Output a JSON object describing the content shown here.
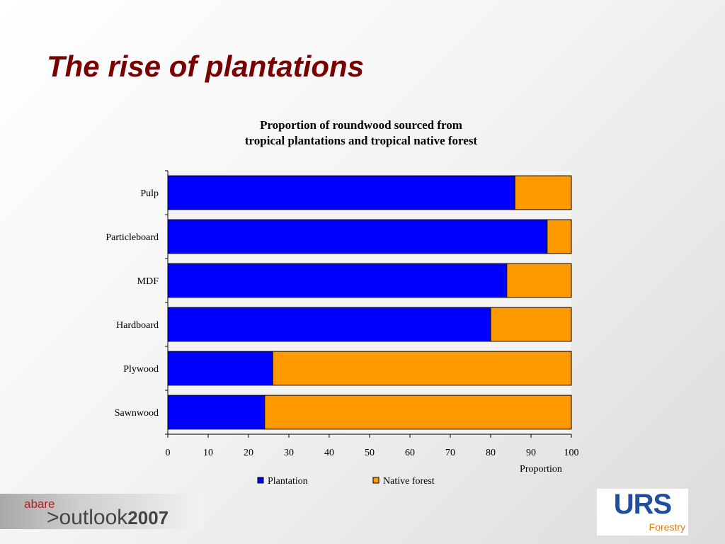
{
  "slide": {
    "title": "The rise of plantations"
  },
  "chart_data": {
    "type": "bar",
    "orientation": "horizontal",
    "stacked": true,
    "title_lines": [
      "Proportion of roundwood sourced from",
      "tropical plantations and tropical native forest"
    ],
    "xlabel": "Proportion",
    "ylabel": "",
    "xlim": [
      0,
      100
    ],
    "xticks": [
      0,
      10,
      20,
      30,
      40,
      50,
      60,
      70,
      80,
      90,
      100
    ],
    "categories": [
      "Pulp",
      "Particleboard",
      "MDF",
      "Hardboard",
      "Plywood",
      "Sawnwood"
    ],
    "series": [
      {
        "name": "Plantation",
        "color": "#0000ff",
        "values": [
          86,
          94,
          84,
          80,
          26,
          24
        ]
      },
      {
        "name": "Native forest",
        "color": "#ff9900",
        "values": [
          14,
          6,
          16,
          20,
          74,
          76
        ]
      }
    ],
    "grid": false,
    "legend_position": "bottom"
  },
  "footer": {
    "abare": "abare",
    "prefix": ">",
    "outlook": "outlook",
    "year": "2007",
    "urs": "URS",
    "forestry": "Forestry"
  }
}
